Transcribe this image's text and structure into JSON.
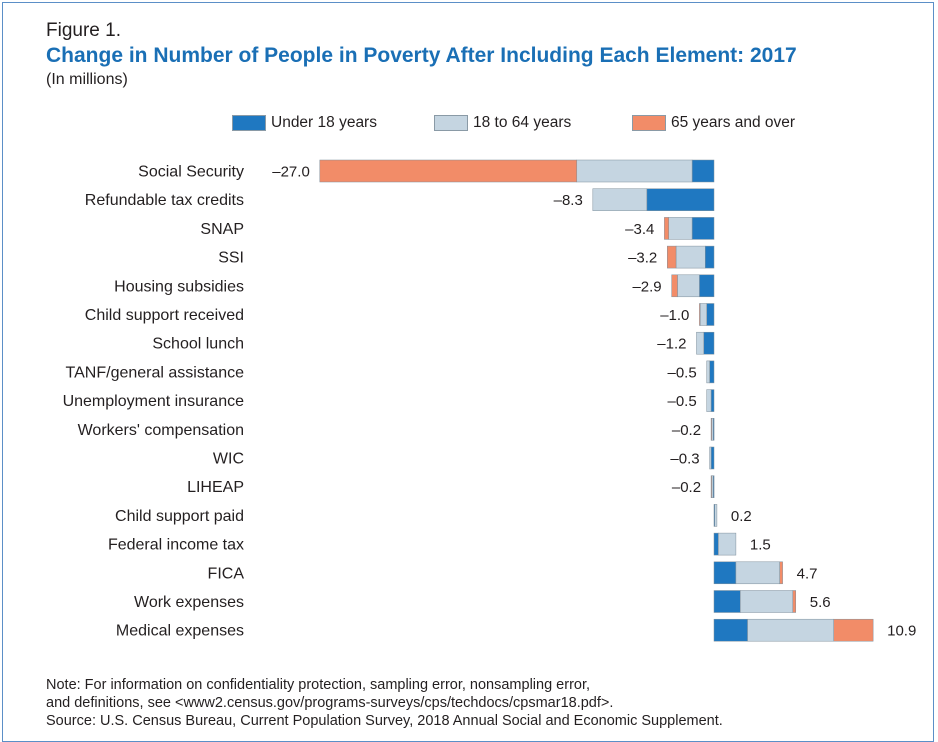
{
  "figure_label": "Figure 1.",
  "title": "Change in Number of People in Poverty After Including Each Element: 2017",
  "subtitle": "(In millions)",
  "colors": {
    "under18": "#1f78c1",
    "age18to64": "#c5d5e1",
    "age65plus": "#f28c68",
    "title": "#1a6fb5",
    "frame": "#5b8fc7"
  },
  "legend": [
    {
      "label": "Under 18 years",
      "color": "#1f78c1"
    },
    {
      "label": "18 to 64 years",
      "color": "#c5d5e1"
    },
    {
      "label": "65 years and over",
      "color": "#f28c68"
    }
  ],
  "chart_data": {
    "type": "bar",
    "orientation": "horizontal",
    "stacked": true,
    "title": "Change in Number of People in Poverty After Including Each Element: 2017",
    "unit": "(In millions)",
    "categories": [
      "Social Security",
      "Refundable tax credits",
      "SNAP",
      "SSI",
      "Housing subsidies",
      "Child support received",
      "School lunch",
      "TANF/general assistance",
      "Unemployment insurance",
      "Workers' compensation",
      "WIC",
      "LIHEAP",
      "Child support paid",
      "Federal income tax",
      "FICA",
      "Work expenses",
      "Medical expenses"
    ],
    "totals": [
      -27.0,
      -8.3,
      -3.4,
      -3.2,
      -2.9,
      -1.0,
      -1.2,
      -0.5,
      -0.5,
      -0.2,
      -0.3,
      -0.2,
      0.2,
      1.5,
      4.7,
      5.6,
      10.9
    ],
    "total_labels": [
      "–27.0",
      "–8.3",
      "–3.4",
      "–3.2",
      "–2.9",
      "–1.0",
      "–1.2",
      "–0.5",
      "–0.5",
      "–0.2",
      "–0.3",
      "–0.2",
      "0.2",
      "1.5",
      "4.7",
      "5.6",
      "10.9"
    ],
    "series": [
      {
        "name": "Under 18 years",
        "color": "#1f78c1",
        "values": [
          -1.5,
          -4.6,
          -1.5,
          -0.6,
          -1.0,
          -0.5,
          -0.7,
          -0.3,
          -0.2,
          -0.05,
          -0.2,
          -0.05,
          0.05,
          0.3,
          1.5,
          1.8,
          2.3
        ]
      },
      {
        "name": "18 to 64 years",
        "color": "#c5d5e1",
        "values": [
          -7.9,
          -3.7,
          -1.6,
          -2.0,
          -1.5,
          -0.45,
          -0.5,
          -0.2,
          -0.3,
          -0.13,
          -0.1,
          -0.1,
          0.15,
          1.2,
          3.0,
          3.6,
          5.9
        ]
      },
      {
        "name": "65 years and over",
        "color": "#f28c68",
        "values": [
          -17.6,
          0.0,
          -0.3,
          -0.6,
          -0.4,
          -0.05,
          0.0,
          0.0,
          0.0,
          -0.02,
          0.0,
          -0.05,
          0.0,
          0.0,
          0.2,
          0.2,
          2.7
        ]
      }
    ],
    "xlim": [
      -27.5,
      14
    ],
    "grid": false,
    "legend_position": "top"
  },
  "note": {
    "line1": "Note: For information on confidentiality protection, sampling error, nonsampling error,",
    "line2": "and definitions, see <www2.census.gov/programs-surveys/cps/techdocs/cpsmar18.pdf>.",
    "line3": "Source: U.S. Census Bureau, Current Population Survey, 2018 Annual Social and Economic Supplement."
  }
}
